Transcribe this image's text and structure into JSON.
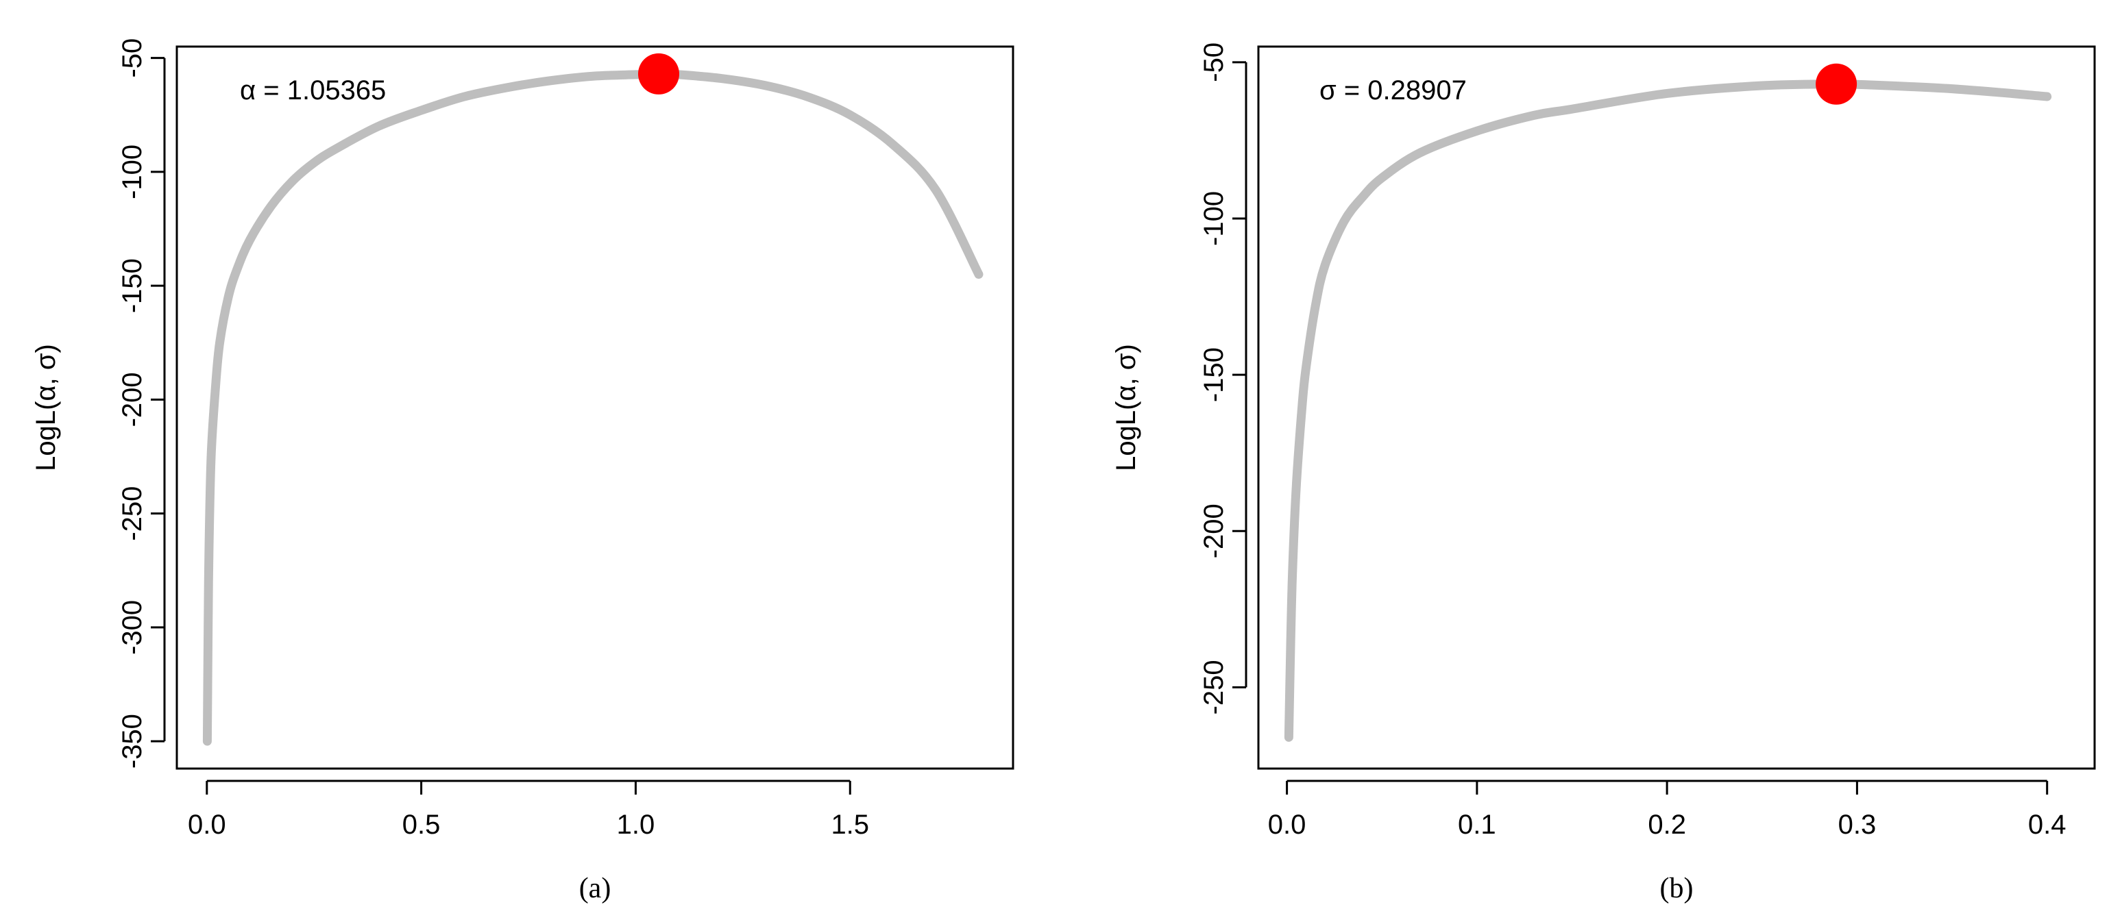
{
  "chart_data": [
    {
      "type": "line",
      "panel_label": "(a)",
      "xlabel": "",
      "ylabel": "LogL(α, σ)",
      "xlim": [
        -0.07,
        1.88
      ],
      "ylim": [
        -362,
        -45
      ],
      "xticks": [
        0.0,
        0.5,
        1.0,
        1.5
      ],
      "xtick_labels": [
        "0.0",
        "0.5",
        "1.0",
        "1.5"
      ],
      "yticks": [
        -50,
        -100,
        -150,
        -200,
        -250,
        -300,
        -350
      ],
      "ytick_labels": [
        "-50",
        "-100",
        "-150",
        "-200",
        "-250",
        "-300",
        "-350"
      ],
      "annotation": "α = 1.05365",
      "grid": false,
      "line_color": "#bebebe",
      "series": [
        {
          "x": [
            0.001,
            0.003,
            0.005,
            0.01,
            0.02,
            0.03,
            0.05,
            0.07,
            0.1,
            0.15,
            0.2,
            0.25,
            0.3,
            0.4,
            0.5,
            0.6,
            0.7,
            0.8,
            0.9,
            1.0,
            1.05365,
            1.1,
            1.2,
            1.3,
            1.4,
            1.5,
            1.6,
            1.7,
            1.8
          ],
          "values": [
            -350,
            -300,
            -266,
            -225,
            -195,
            -175,
            -155,
            -143,
            -130,
            -115,
            -104,
            -96,
            -90,
            -80,
            -73,
            -67,
            -63,
            -60,
            -58,
            -57.3,
            -57,
            -57.3,
            -59,
            -62,
            -67,
            -75,
            -88,
            -108,
            -145
          ]
        }
      ],
      "mle_point": {
        "x": 1.05365,
        "y": -57,
        "color": "#ff0000"
      }
    },
    {
      "type": "line",
      "panel_label": "(b)",
      "xlabel": "",
      "ylabel": "LogL(α, σ)",
      "xlim": [
        -0.015,
        0.425
      ],
      "ylim": [
        -276,
        -45
      ],
      "xticks": [
        0.0,
        0.1,
        0.2,
        0.3,
        0.4
      ],
      "xtick_labels": [
        "0.0",
        "0.1",
        "0.2",
        "0.3",
        "0.4"
      ],
      "yticks": [
        -50,
        -100,
        -150,
        -200,
        -250
      ],
      "ytick_labels": [
        "-50",
        "-100",
        "-150",
        "-200",
        "-250"
      ],
      "annotation": "σ = 0.28907",
      "grid": false,
      "line_color": "#bebebe",
      "series": [
        {
          "x": [
            0.001,
            0.002,
            0.003,
            0.005,
            0.008,
            0.01,
            0.015,
            0.02,
            0.03,
            0.04,
            0.05,
            0.07,
            0.1,
            0.13,
            0.15,
            0.2,
            0.25,
            0.28907,
            0.3,
            0.35,
            0.4
          ],
          "values": [
            -266,
            -235,
            -212,
            -185,
            -160,
            -148,
            -128,
            -115,
            -101,
            -93,
            -87,
            -79,
            -72,
            -67,
            -65,
            -60,
            -57.5,
            -57,
            -57.1,
            -58.5,
            -61
          ]
        }
      ],
      "mle_point": {
        "x": 0.28907,
        "y": -57,
        "color": "#ff0000"
      }
    }
  ]
}
